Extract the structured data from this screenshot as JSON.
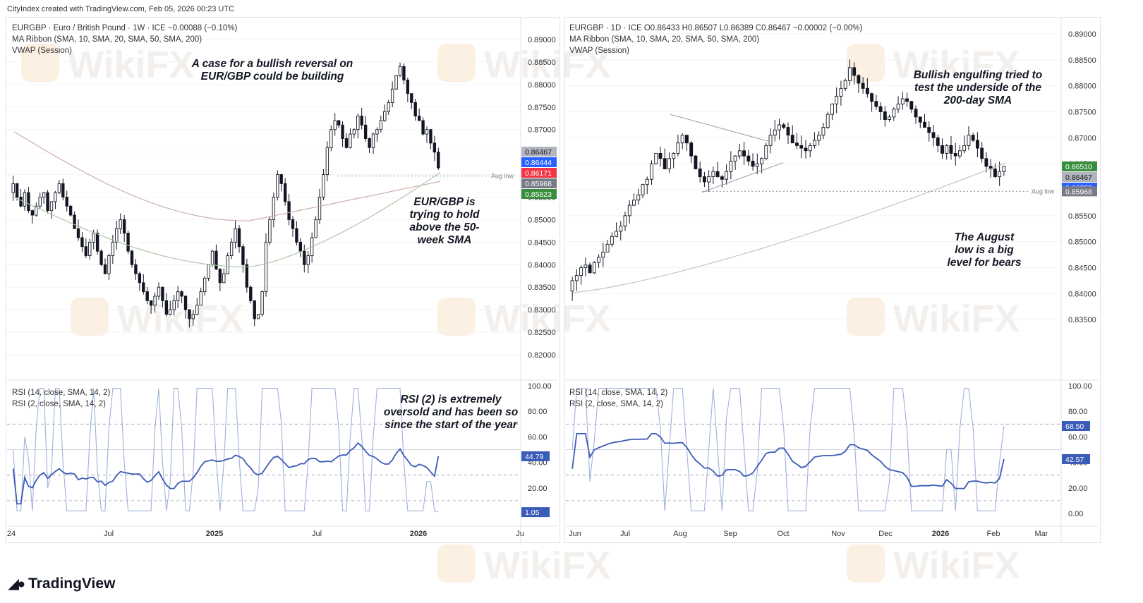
{
  "credit": "CityIndex created with TradingView.com, Feb 05, 2026 00:23 UTC",
  "branding": {
    "logo_text": "TradingView",
    "watermark": "WikiFX"
  },
  "left": {
    "legend": [
      "EURGBP · Euro / British Pound · 1W · ICE  −0.00088 (−0.10%)",
      "MA Ribbon (SMA, 10, SMA, 20, SMA, 50, SMA, 200)",
      "VWAP (Session)"
    ],
    "annotations": {
      "a1": "A case for a bullish reversal on EUR/GBP could be building",
      "a2": "EUR/GBP is trying to hold above the 50- week SMA",
      "a3": "RSI (2) is extremely oversold and has been so since the start of the year"
    },
    "aug_low": "Aug low",
    "price_ticks": [
      "0.89000",
      "0.88500",
      "0.88000",
      "0.87500",
      "0.87000",
      "0.86500",
      "0.86000",
      "0.85500",
      "0.85000",
      "0.84500",
      "0.84000",
      "0.83500",
      "0.83000",
      "0.82500",
      "0.82000"
    ],
    "price_labels": [
      {
        "text": "0.86467",
        "color": "#b2b5be",
        "tcolor": "#131722"
      },
      {
        "text": "0.86444",
        "color": "#2962ff",
        "tcolor": "#ffffff"
      },
      {
        "text": "0.86171",
        "color": "#f23645",
        "tcolor": "#ffffff"
      },
      {
        "text": "0.85968",
        "color": "#787b86",
        "tcolor": "#ffffff"
      },
      {
        "text": "0.85823",
        "color": "#388e3c",
        "tcolor": "#ffffff"
      }
    ],
    "rsi_legend": [
      "RSI (14, close, SMA, 14, 2)",
      "RSI (2, close, SMA, 14, 2)"
    ],
    "rsi_ticks": [
      "100.00",
      "80.00",
      "60.00",
      "40.00",
      "20.00"
    ],
    "rsi_labels": [
      "44.79",
      "1.05"
    ],
    "time_labels": [
      "24",
      "Jul",
      "2025",
      "Jul",
      "2026",
      "Ju"
    ]
  },
  "right": {
    "legend": [
      "EURGBP · 1D · ICE  O0.86433  H0.86507  L0.86389  C0.86467  −0.00002 (−0.00%)",
      "MA Ribbon (SMA, 10, SMA, 20, SMA, 50, SMA, 200)",
      "VWAP (Session)"
    ],
    "annotations": {
      "a1": "Bullish engulfing tried to test the underside of the 200-day SMA",
      "a2": "The August low is a big level for bears"
    },
    "aug_low": "Aug low",
    "price_ticks": [
      "0.89000",
      "0.88500",
      "0.88000",
      "0.87500",
      "0.87000",
      "0.86500",
      "0.86000",
      "0.85500",
      "0.85000",
      "0.84500",
      "0.84000",
      "0.83500"
    ],
    "price_labels": [
      {
        "text": "0.86510",
        "color": "#388e3c",
        "tcolor": "#ffffff"
      },
      {
        "text": "0.86467",
        "color": "#b2b5be",
        "tcolor": "#131722"
      },
      {
        "text": "0.86359",
        "color": "#2962ff",
        "tcolor": "#ffffff"
      },
      {
        "text": "0.85968",
        "color": "#787b86",
        "tcolor": "#ffffff"
      }
    ],
    "rsi_legend": [
      "RSI (14, close, SMA, 14, 2)",
      "RSI (2, close, SMA, 14, 2)"
    ],
    "rsi_ticks": [
      "100.00",
      "80.00",
      "60.00",
      "40.00",
      "20.00",
      "0.00"
    ],
    "rsi_labels": [
      "68.50",
      "42.57"
    ],
    "time_labels": [
      "Jun",
      "Jul",
      "Aug",
      "Sep",
      "Oct",
      "Nov",
      "Dec",
      "2026",
      "Feb",
      "Mar"
    ]
  },
  "chart_data": [
    {
      "type": "candlestick",
      "symbol": "EURGBP",
      "timeframe": "1W",
      "ylim": [
        0.82,
        0.89
      ],
      "x_range": [
        "Jan 2024",
        "Jul 2026"
      ],
      "closes_approx": [
        0.858,
        0.855,
        0.853,
        0.856,
        0.852,
        0.851,
        0.853,
        0.855,
        0.856,
        0.852,
        0.854,
        0.856,
        0.858,
        0.855,
        0.853,
        0.851,
        0.848,
        0.846,
        0.844,
        0.842,
        0.845,
        0.847,
        0.843,
        0.84,
        0.838,
        0.842,
        0.845,
        0.848,
        0.85,
        0.847,
        0.843,
        0.84,
        0.838,
        0.836,
        0.834,
        0.832,
        0.831,
        0.833,
        0.835,
        0.832,
        0.829,
        0.83,
        0.832,
        0.834,
        0.833,
        0.83,
        0.828,
        0.829,
        0.831,
        0.834,
        0.837,
        0.84,
        0.843,
        0.839,
        0.836,
        0.838,
        0.842,
        0.845,
        0.848,
        0.844,
        0.84,
        0.835,
        0.832,
        0.828,
        0.829,
        0.834,
        0.845,
        0.85,
        0.855,
        0.86,
        0.858,
        0.854,
        0.85,
        0.848,
        0.845,
        0.843,
        0.84,
        0.842,
        0.846,
        0.85,
        0.855,
        0.86,
        0.866,
        0.87,
        0.872,
        0.871,
        0.868,
        0.866,
        0.869,
        0.87,
        0.873,
        0.871,
        0.868,
        0.866,
        0.869,
        0.87,
        0.872,
        0.874,
        0.876,
        0.879,
        0.882,
        0.884,
        0.881,
        0.878,
        0.876,
        0.873,
        0.872,
        0.869,
        0.87,
        0.867,
        0.865,
        0.8615
      ],
      "sma50_approx": {
        "start": 0.855,
        "min": 0.8395,
        "end": 0.8605
      },
      "sma200_approx": {
        "start": 0.8695,
        "min": 0.8497,
        "end": 0.8585
      },
      "aug_low": 0.85968,
      "last_close": 0.86467,
      "rsi14_last": 44.79,
      "rsi2_last": 1.05
    },
    {
      "type": "candlestick",
      "symbol": "EURGBP",
      "timeframe": "1D",
      "ylim": [
        0.83,
        0.89
      ],
      "x_range": [
        "Jun 2025",
        "Mar 2026"
      ],
      "ohlc_last": {
        "open": 0.86433,
        "high": 0.86507,
        "low": 0.86389,
        "close": 0.86467
      },
      "closes_approx": [
        0.8425,
        0.8435,
        0.845,
        0.8455,
        0.844,
        0.846,
        0.847,
        0.848,
        0.8495,
        0.851,
        0.852,
        0.853,
        0.855,
        0.857,
        0.858,
        0.859,
        0.861,
        0.862,
        0.865,
        0.867,
        0.866,
        0.864,
        0.866,
        0.867,
        0.869,
        0.8705,
        0.869,
        0.8665,
        0.864,
        0.8625,
        0.8615,
        0.8625,
        0.8635,
        0.8625,
        0.862,
        0.8635,
        0.8655,
        0.8665,
        0.8675,
        0.8665,
        0.8655,
        0.8645,
        0.865,
        0.866,
        0.8685,
        0.8705,
        0.8715,
        0.8725,
        0.872,
        0.8705,
        0.869,
        0.8685,
        0.868,
        0.8675,
        0.8685,
        0.8695,
        0.8705,
        0.872,
        0.8745,
        0.8765,
        0.878,
        0.8795,
        0.881,
        0.8835,
        0.882,
        0.8805,
        0.8795,
        0.8785,
        0.877,
        0.876,
        0.875,
        0.8735,
        0.874,
        0.8755,
        0.8765,
        0.8775,
        0.877,
        0.8755,
        0.874,
        0.873,
        0.872,
        0.871,
        0.87,
        0.8685,
        0.867,
        0.8685,
        0.867,
        0.8665,
        0.8675,
        0.8685,
        0.8705,
        0.8695,
        0.868,
        0.866,
        0.8645,
        0.864,
        0.8625,
        0.8635,
        0.8645
      ],
      "sma200_approx": {
        "start": 0.8402,
        "end": 0.8652
      },
      "aug_low": 0.85968,
      "last_close": 0.86467,
      "rsi14_last": 42.57,
      "rsi2_last": 68.5
    }
  ]
}
